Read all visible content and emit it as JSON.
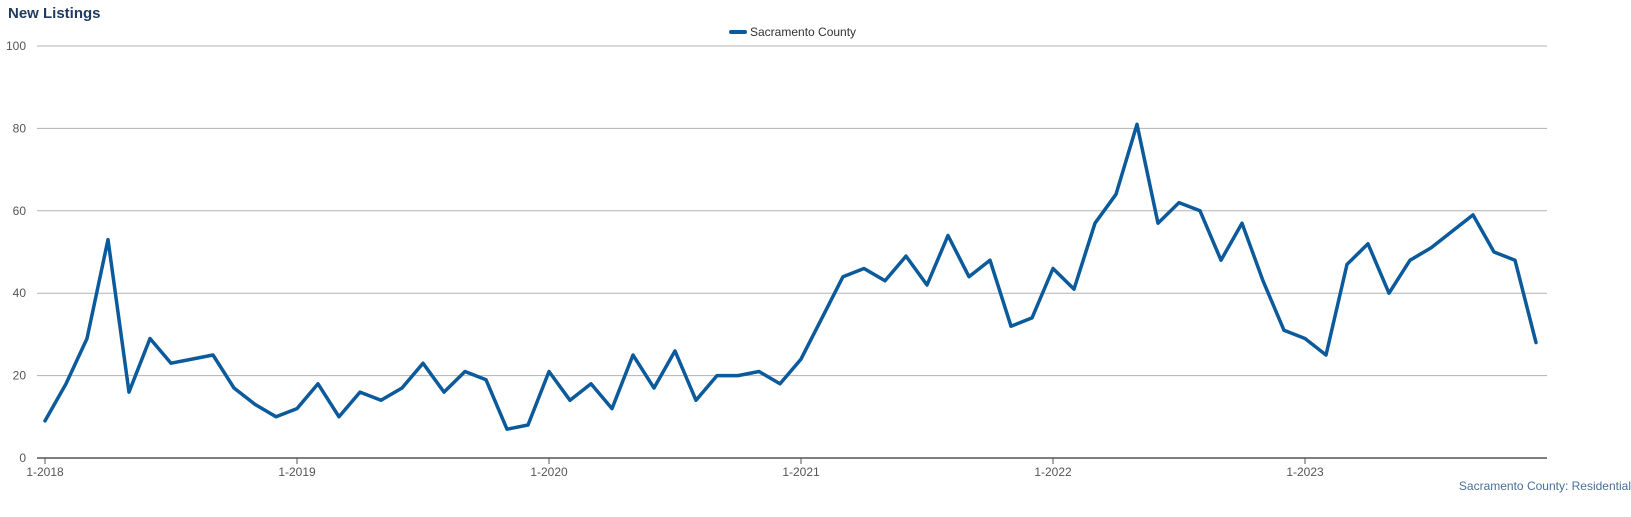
{
  "title": "New Listings",
  "footer": "Sacramento County: Residential",
  "colors": {
    "series": "#0b5a9c",
    "grid": "#b3b3b3",
    "axis": "#555555"
  },
  "chart_data": {
    "type": "line",
    "ylim": [
      0,
      100
    ],
    "y_ticks": [
      0,
      20,
      40,
      60,
      80,
      100
    ],
    "x_ticks": [
      "1-2018",
      "1-2019",
      "1-2020",
      "1-2021",
      "1-2022",
      "1-2023"
    ],
    "grid": true,
    "legend_position": "top-center",
    "series": [
      {
        "name": "Sacramento County",
        "x": [
          "1-2018",
          "2-2018",
          "3-2018",
          "4-2018",
          "5-2018",
          "6-2018",
          "7-2018",
          "8-2018",
          "9-2018",
          "10-2018",
          "11-2018",
          "12-2018",
          "1-2019",
          "2-2019",
          "3-2019",
          "4-2019",
          "5-2019",
          "6-2019",
          "7-2019",
          "8-2019",
          "9-2019",
          "10-2019",
          "11-2019",
          "12-2019",
          "1-2020",
          "2-2020",
          "3-2020",
          "4-2020",
          "5-2020",
          "6-2020",
          "7-2020",
          "8-2020",
          "9-2020",
          "10-2020",
          "11-2020",
          "12-2020",
          "1-2021",
          "2-2021",
          "3-2021",
          "4-2021",
          "5-2021",
          "6-2021",
          "7-2021",
          "8-2021",
          "9-2021",
          "10-2021",
          "11-2021",
          "12-2021",
          "1-2022",
          "2-2022",
          "3-2022",
          "4-2022",
          "5-2022",
          "6-2022",
          "7-2022",
          "8-2022",
          "9-2022",
          "10-2022",
          "11-2022",
          "12-2022",
          "1-2023",
          "2-2023",
          "3-2023",
          "4-2023",
          "5-2023",
          "6-2023",
          "7-2023",
          "8-2023",
          "9-2023",
          "10-2023",
          "11-2023",
          "12-2023"
        ],
        "values": [
          9,
          18,
          29,
          53,
          16,
          29,
          23,
          24,
          25,
          17,
          13,
          10,
          12,
          18,
          10,
          16,
          14,
          17,
          23,
          16,
          21,
          19,
          7,
          8,
          21,
          14,
          18,
          12,
          25,
          17,
          26,
          14,
          20,
          20,
          21,
          18,
          24,
          34,
          44,
          46,
          43,
          49,
          42,
          54,
          44,
          48,
          32,
          34,
          46,
          41,
          57,
          64,
          81,
          57,
          62,
          60,
          48,
          57,
          43,
          31,
          29,
          25,
          47,
          52,
          40,
          48,
          51,
          55,
          59,
          50,
          48,
          28
        ]
      }
    ]
  }
}
